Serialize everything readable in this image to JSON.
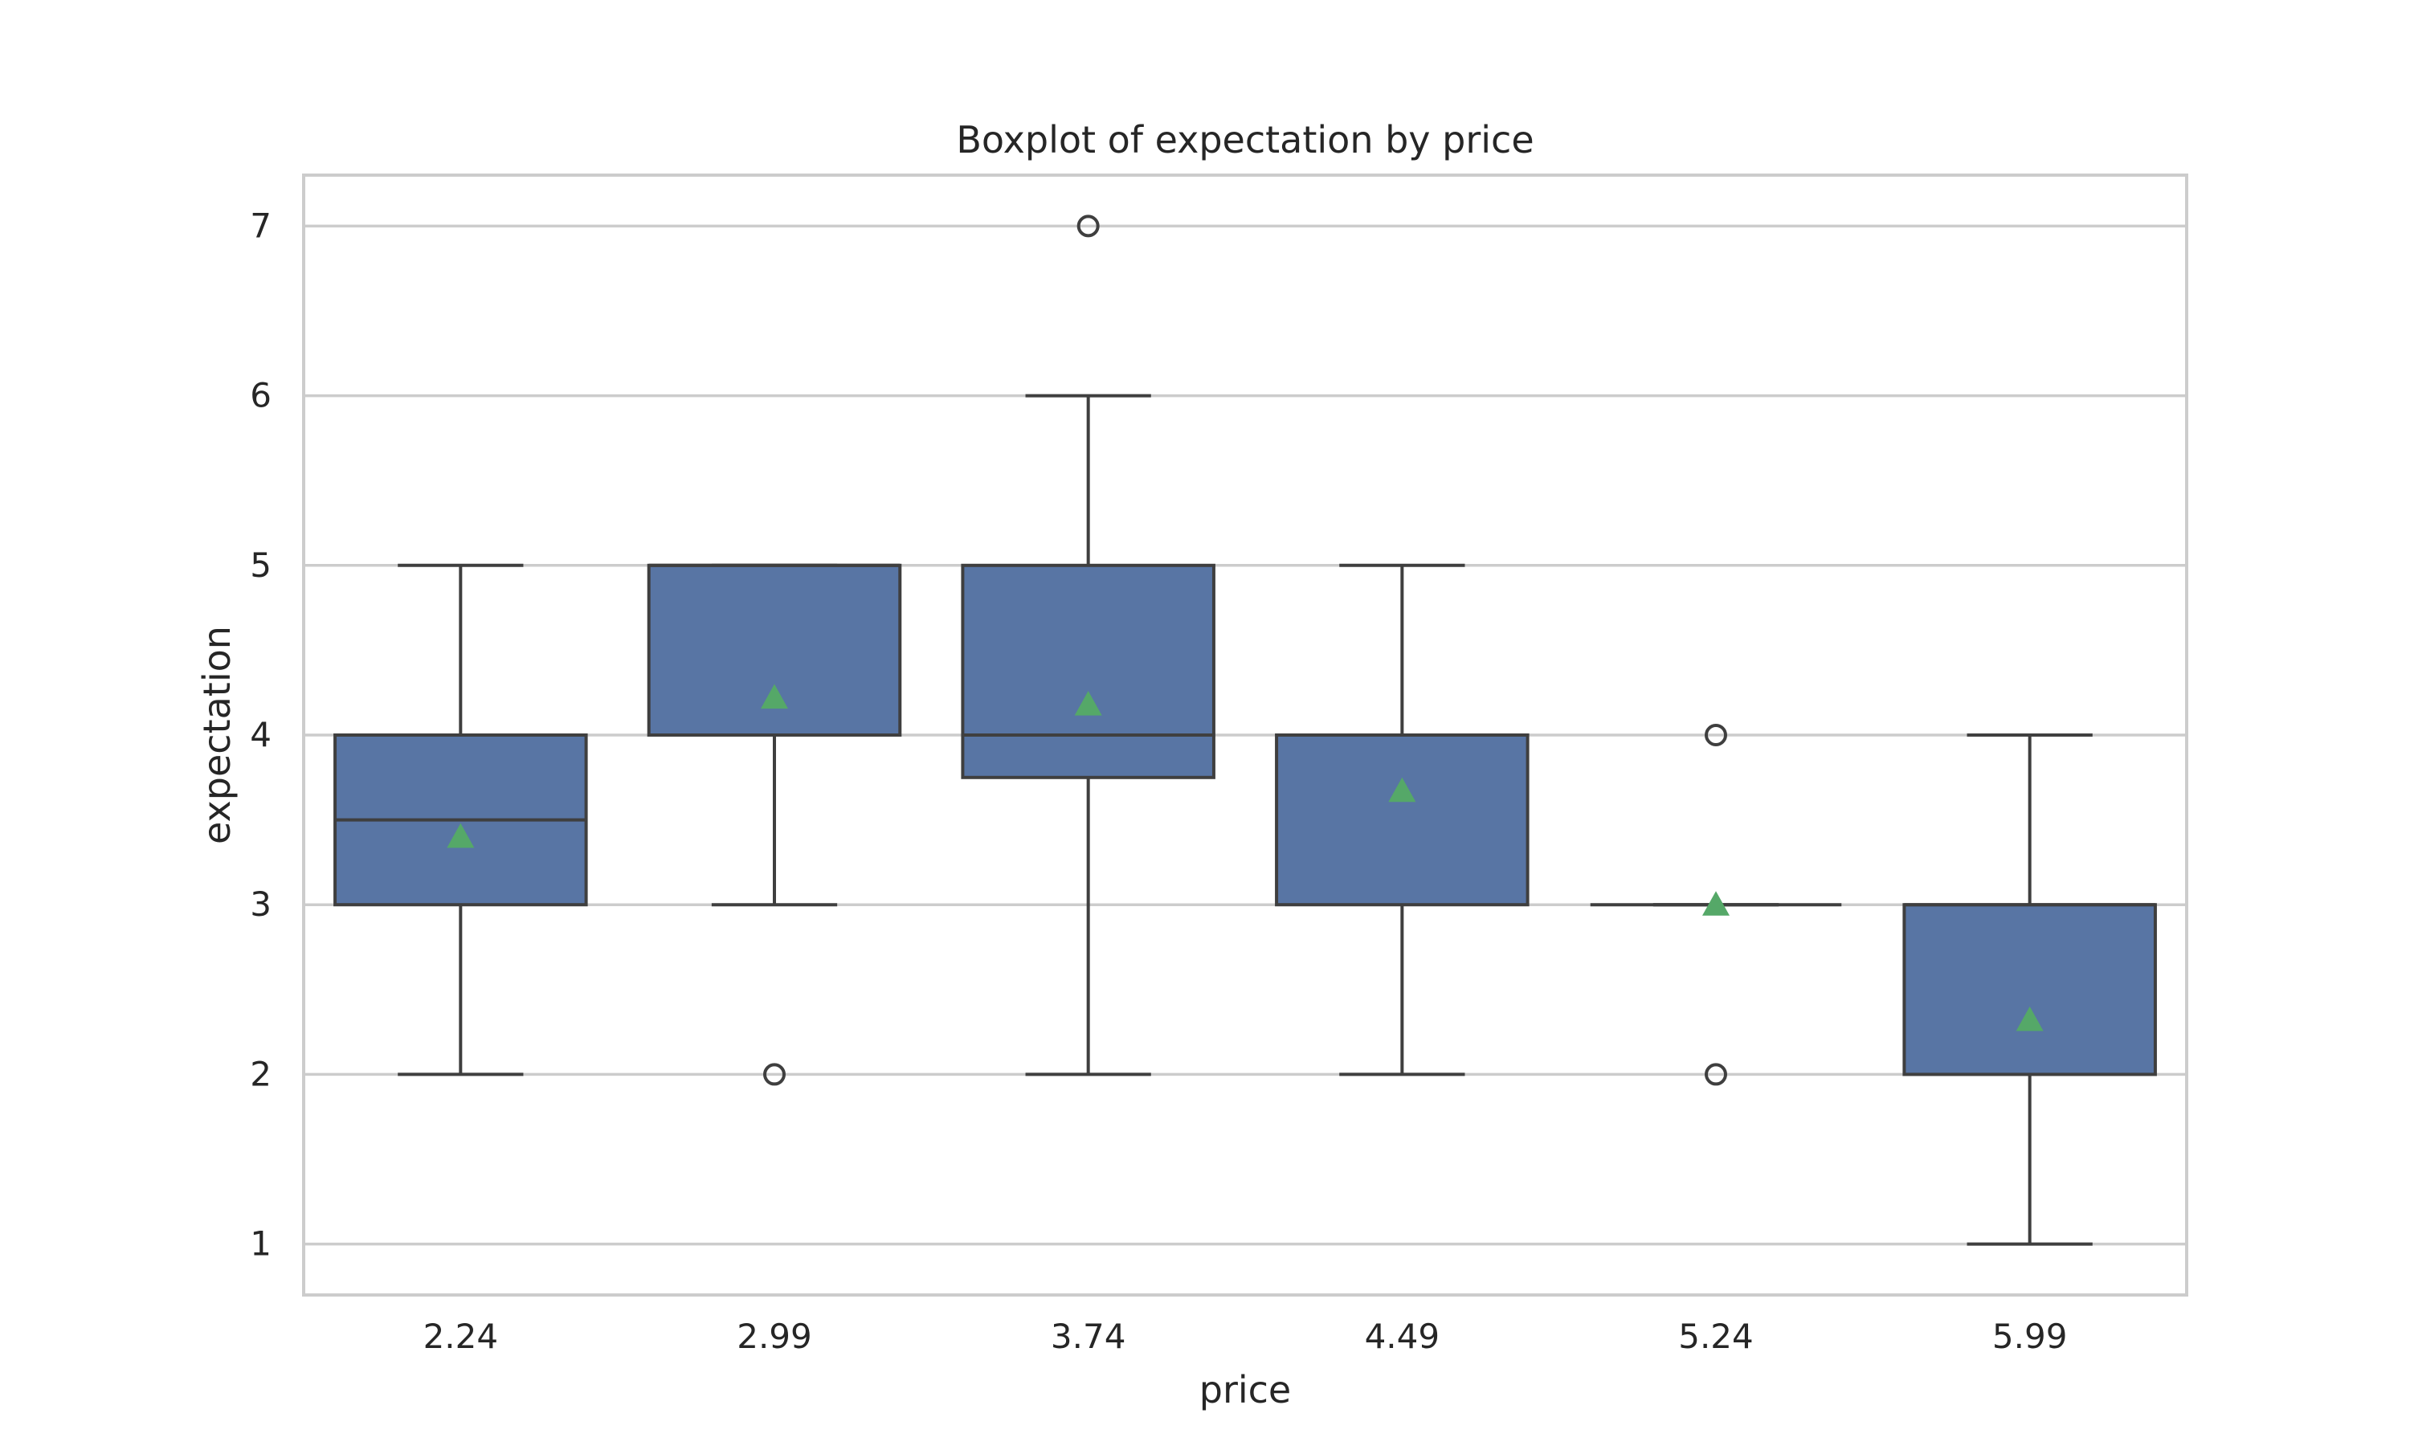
{
  "chart_data": {
    "type": "box",
    "title": "Boxplot of expectation by price",
    "xlabel": "price",
    "ylabel": "expectation",
    "categories": [
      "2.24",
      "2.99",
      "3.74",
      "4.49",
      "5.24",
      "5.99"
    ],
    "ylim": [
      0.7,
      7.3
    ],
    "yticks": [
      1,
      2,
      3,
      4,
      5,
      6,
      7
    ],
    "grid": "horizontal",
    "boxes": [
      {
        "category": "2.24",
        "whisker_low": 2,
        "q1": 3,
        "median": 3.5,
        "q3": 4,
        "whisker_high": 5,
        "mean": 3.4,
        "outliers": []
      },
      {
        "category": "2.99",
        "whisker_low": 3,
        "q1": 4,
        "median": 5,
        "q3": 5,
        "whisker_high": 5,
        "mean": 4.22,
        "outliers": [
          2
        ]
      },
      {
        "category": "3.74",
        "whisker_low": 2,
        "q1": 3.75,
        "median": 4,
        "q3": 5,
        "whisker_high": 6,
        "mean": 4.18,
        "outliers": [
          7
        ]
      },
      {
        "category": "4.49",
        "whisker_low": 2,
        "q1": 3,
        "median": 4,
        "q3": 4,
        "whisker_high": 5,
        "mean": 3.67,
        "outliers": []
      },
      {
        "category": "5.24",
        "whisker_low": 3,
        "q1": 3,
        "median": 3,
        "q3": 3,
        "whisker_high": 3,
        "mean": 3.0,
        "outliers": [
          2,
          4
        ]
      },
      {
        "category": "5.99",
        "whisker_low": 1,
        "q1": 2,
        "median": 3,
        "q3": 3,
        "whisker_high": 4,
        "mean": 2.32,
        "outliers": []
      }
    ],
    "colors": {
      "box_fill": "#5875a4",
      "line": "#3f3f3f",
      "mean_marker": "#55a868",
      "grid": "#cccccc",
      "frame": "#cccccc"
    }
  }
}
